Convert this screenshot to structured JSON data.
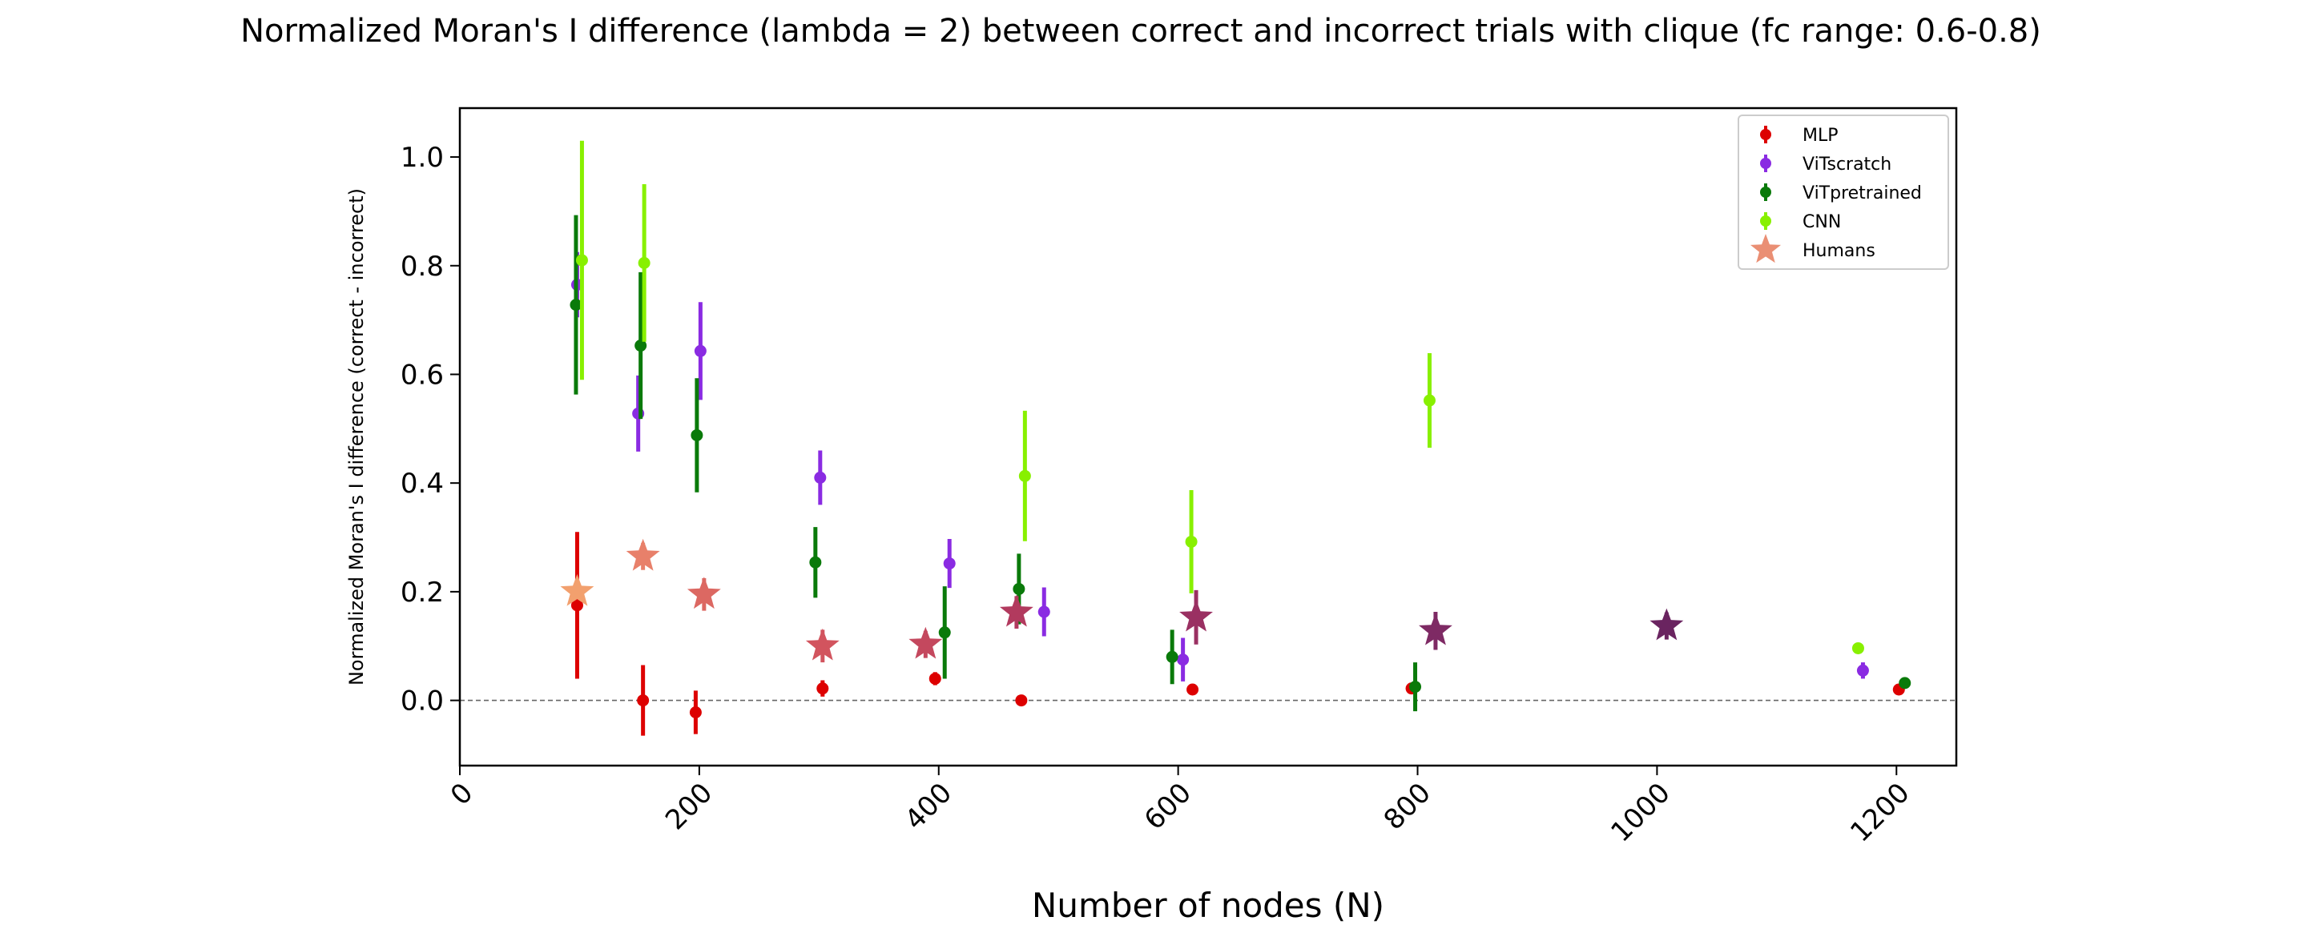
{
  "chart_data": {
    "type": "scatter",
    "title": "Normalized Moran's I difference (lambda = 2) between correct and incorrect trials with clique (fc range: 0.6-0.8)",
    "xlabel": "Number of nodes (N)",
    "ylabel": "Normalized Moran's I difference (correct - incorrect)",
    "xlim": [
      0,
      1250
    ],
    "ylim": [
      -0.12,
      1.09
    ],
    "x_ticks": [
      0,
      200,
      400,
      600,
      800,
      1000,
      1200
    ],
    "x_tick_labels": [
      "0",
      "200",
      "400",
      "600",
      "800",
      "1000",
      "1200"
    ],
    "y_ticks": [
      0.0,
      0.2,
      0.4,
      0.6,
      0.8,
      1.0
    ],
    "y_tick_labels": [
      "0.0",
      "0.2",
      "0.4",
      "0.6",
      "0.8",
      "1.0"
    ],
    "reference_line_y": 0,
    "grid": false,
    "legend_position": "top-right",
    "series": [
      {
        "name": "MLP",
        "color": "#dd0000",
        "marker": "circle",
        "points": [
          {
            "x": 98,
            "y": 0.175,
            "err": 0.135
          },
          {
            "x": 153,
            "y": 0.0,
            "err": 0.065
          },
          {
            "x": 197,
            "y": -0.022,
            "err": 0.04
          },
          {
            "x": 303,
            "y": 0.022,
            "err": 0.015
          },
          {
            "x": 397,
            "y": 0.04,
            "err": 0.012
          },
          {
            "x": 469,
            "y": 0.0,
            "err": 0.008
          },
          {
            "x": 612,
            "y": 0.02,
            "err": 0.004
          },
          {
            "x": 795,
            "y": 0.022,
            "err": 0.004
          },
          {
            "x": 1202,
            "y": 0.02,
            "err": 0.003
          }
        ]
      },
      {
        "name": "ViTscratch",
        "color": "#8a2be2",
        "marker": "circle",
        "points": [
          {
            "x": 98,
            "y": 0.765,
            "err": 0.06
          },
          {
            "x": 149,
            "y": 0.528,
            "err": 0.07
          },
          {
            "x": 201,
            "y": 0.643,
            "err": 0.09
          },
          {
            "x": 301,
            "y": 0.41,
            "err": 0.05
          },
          {
            "x": 409,
            "y": 0.252,
            "err": 0.045
          },
          {
            "x": 488,
            "y": 0.163,
            "err": 0.045
          },
          {
            "x": 604,
            "y": 0.075,
            "err": 0.04
          },
          {
            "x": 1172,
            "y": 0.055,
            "err": 0.015
          }
        ]
      },
      {
        "name": "ViTpretrained",
        "color": "#0a7a0a",
        "marker": "circle",
        "points": [
          {
            "x": 97,
            "y": 0.728,
            "err": 0.165
          },
          {
            "x": 151,
            "y": 0.653,
            "err": 0.135
          },
          {
            "x": 198,
            "y": 0.488,
            "err": 0.105
          },
          {
            "x": 297,
            "y": 0.254,
            "err": 0.065
          },
          {
            "x": 405,
            "y": 0.125,
            "err": 0.085
          },
          {
            "x": 467,
            "y": 0.205,
            "err": 0.065
          },
          {
            "x": 595,
            "y": 0.08,
            "err": 0.05
          },
          {
            "x": 798,
            "y": 0.025,
            "err": 0.045
          },
          {
            "x": 1207,
            "y": 0.032,
            "err": 0.006
          }
        ]
      },
      {
        "name": "CNN",
        "color": "#88f000",
        "marker": "circle",
        "points": [
          {
            "x": 102,
            "y": 0.81,
            "err": 0.22
          },
          {
            "x": 154,
            "y": 0.805,
            "err": 0.145
          },
          {
            "x": 472,
            "y": 0.413,
            "err": 0.12
          },
          {
            "x": 611,
            "y": 0.292,
            "err": 0.095
          },
          {
            "x": 810,
            "y": 0.552,
            "err": 0.087
          },
          {
            "x": 1168,
            "y": 0.096,
            "err": 0.006
          }
        ]
      },
      {
        "name": "Humans",
        "color": "#ea8f74",
        "marker": "star",
        "points": [
          {
            "x": 98,
            "y": 0.2,
            "err": 0,
            "color": "#f2a06e"
          },
          {
            "x": 153,
            "y": 0.265,
            "err": 0.025,
            "color": "#e8806a"
          },
          {
            "x": 204,
            "y": 0.195,
            "err": 0.03,
            "color": "#dc6862"
          },
          {
            "x": 303,
            "y": 0.1,
            "err": 0.03,
            "color": "#d2545e"
          },
          {
            "x": 389,
            "y": 0.103,
            "err": 0.025,
            "color": "#c4485e"
          },
          {
            "x": 465,
            "y": 0.162,
            "err": 0.03,
            "color": "#b23a5e"
          },
          {
            "x": 615,
            "y": 0.153,
            "err": 0.05,
            "color": "#9a3062"
          },
          {
            "x": 815,
            "y": 0.128,
            "err": 0.035,
            "color": "#7e2a64"
          },
          {
            "x": 1008,
            "y": 0.137,
            "err": 0.025,
            "color": "#6a2460"
          }
        ]
      }
    ]
  }
}
